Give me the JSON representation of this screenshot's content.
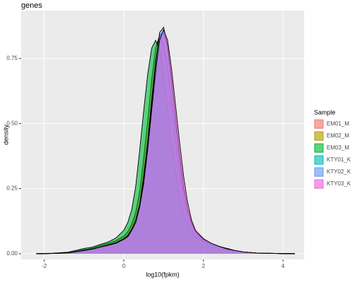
{
  "chart_data": {
    "type": "density",
    "title": "genes",
    "xlabel": "log10(fpkm)",
    "ylabel": "density",
    "legend_title": "Sample",
    "x": [
      -2.2,
      -1.8,
      -1.4,
      -1.0,
      -0.8,
      -0.6,
      -0.4,
      -0.2,
      0,
      0.1,
      0.2,
      0.3,
      0.4,
      0.5,
      0.6,
      0.7,
      0.8,
      0.9,
      1.0,
      1.1,
      1.2,
      1.3,
      1.4,
      1.5,
      1.6,
      1.7,
      1.8,
      2.0,
      2.2,
      2.4,
      2.6,
      2.8,
      3.0,
      3.4,
      3.8,
      4.3
    ],
    "series": [
      {
        "name": "EM01_M",
        "color": "#F8766D",
        "values": [
          0,
          0.001,
          0.004,
          0.015,
          0.02,
          0.03,
          0.038,
          0.048,
          0.065,
          0.08,
          0.11,
          0.15,
          0.23,
          0.36,
          0.5,
          0.66,
          0.79,
          0.84,
          0.81,
          0.72,
          0.59,
          0.45,
          0.32,
          0.21,
          0.14,
          0.1,
          0.075,
          0.05,
          0.035,
          0.025,
          0.015,
          0.01,
          0.006,
          0.002,
          0.001,
          0
        ]
      },
      {
        "name": "EM02_M",
        "color": "#B79F00",
        "values": [
          0,
          0.001,
          0.004,
          0.016,
          0.021,
          0.031,
          0.04,
          0.05,
          0.068,
          0.085,
          0.115,
          0.16,
          0.24,
          0.37,
          0.51,
          0.67,
          0.79,
          0.83,
          0.8,
          0.71,
          0.58,
          0.44,
          0.31,
          0.21,
          0.14,
          0.1,
          0.075,
          0.05,
          0.035,
          0.025,
          0.015,
          0.01,
          0.006,
          0.002,
          0.001,
          0
        ]
      },
      {
        "name": "EM03_M",
        "color": "#00BA38",
        "values": [
          0,
          0.002,
          0.006,
          0.02,
          0.025,
          0.035,
          0.045,
          0.06,
          0.09,
          0.12,
          0.17,
          0.26,
          0.4,
          0.55,
          0.69,
          0.79,
          0.82,
          0.78,
          0.68,
          0.55,
          0.42,
          0.31,
          0.22,
          0.15,
          0.11,
          0.08,
          0.065,
          0.045,
          0.035,
          0.028,
          0.02,
          0.012,
          0.007,
          0.002,
          0.001,
          0
        ]
      },
      {
        "name": "KTY01_K",
        "color": "#00BFC4",
        "values": [
          0,
          0.001,
          0.003,
          0.013,
          0.018,
          0.026,
          0.034,
          0.042,
          0.058,
          0.07,
          0.095,
          0.13,
          0.19,
          0.3,
          0.43,
          0.59,
          0.74,
          0.84,
          0.85,
          0.79,
          0.66,
          0.51,
          0.37,
          0.25,
          0.17,
          0.12,
          0.085,
          0.055,
          0.04,
          0.028,
          0.018,
          0.012,
          0.007,
          0.002,
          0.001,
          0
        ]
      },
      {
        "name": "KTY02_K",
        "color": "#619CFF",
        "values": [
          0,
          0.001,
          0.003,
          0.012,
          0.017,
          0.025,
          0.032,
          0.04,
          0.055,
          0.065,
          0.09,
          0.12,
          0.18,
          0.28,
          0.41,
          0.57,
          0.73,
          0.85,
          0.87,
          0.8,
          0.67,
          0.52,
          0.38,
          0.26,
          0.17,
          0.12,
          0.085,
          0.055,
          0.04,
          0.028,
          0.018,
          0.012,
          0.007,
          0.002,
          0.001,
          0
        ]
      },
      {
        "name": "KTY03_K",
        "color": "#F564E3",
        "values": [
          0,
          0.001,
          0.003,
          0.012,
          0.017,
          0.025,
          0.032,
          0.04,
          0.055,
          0.065,
          0.09,
          0.12,
          0.18,
          0.27,
          0.4,
          0.55,
          0.7,
          0.82,
          0.86,
          0.82,
          0.71,
          0.57,
          0.43,
          0.3,
          0.2,
          0.13,
          0.09,
          0.058,
          0.04,
          0.028,
          0.018,
          0.012,
          0.007,
          0.002,
          0.001,
          0
        ]
      }
    ],
    "xlim": [
      -2.58,
      4.53
    ],
    "ylim": [
      -0.022,
      0.934
    ],
    "xticks": [
      -2,
      0,
      2,
      4
    ],
    "yticks": [
      {
        "value": 0,
        "label": "0.00"
      },
      {
        "value": 0.25,
        "label": "0.25"
      },
      {
        "value": 0.5,
        "label": "0.50"
      },
      {
        "value": 0.75,
        "label": "0.75"
      }
    ],
    "grid": true
  }
}
